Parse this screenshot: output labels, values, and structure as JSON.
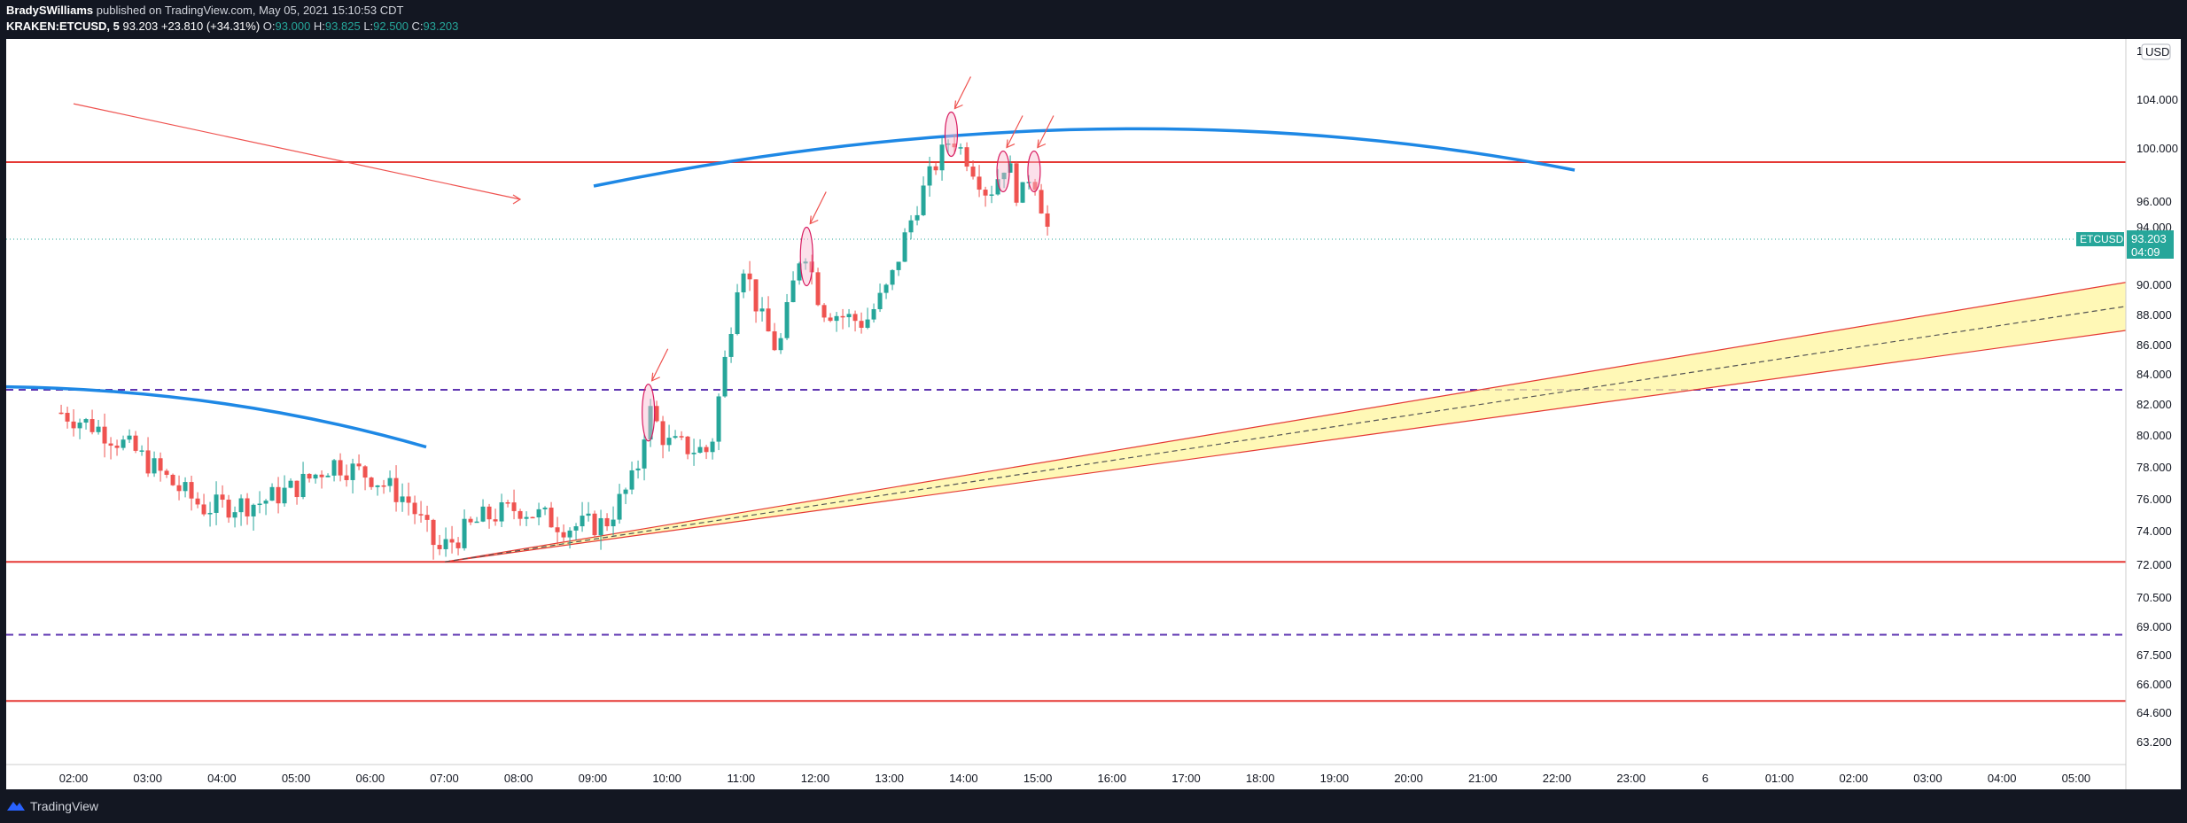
{
  "header": {
    "author": "BradySWilliams",
    "published": "published on TradingView.com, May 05, 2021 15:10:53 CDT",
    "symbol": "KRAKEN:ETCUSD, 5",
    "last": "93.203",
    "change": "+23.810 (+34.31%)",
    "o_label": "O:",
    "o": "93.000",
    "h_label": "H:",
    "h": "93.825",
    "l_label": "L:",
    "l": "92.500",
    "c_label": "C:",
    "c": "93.203"
  },
  "footer": {
    "brand": "TradingView"
  },
  "colors": {
    "background": "#ffffff",
    "up": "#26a69a",
    "down": "#ef5350",
    "hline": "#e53935",
    "dashed": "#5e35b1",
    "arc": "#1e88e5",
    "channel_fill": "#fff59d"
  },
  "chart_data": {
    "type": "candlestick",
    "title": "",
    "xlabel": "",
    "ylabel": "",
    "currency_badge": "USD",
    "price_tag": {
      "symbol": "ETCUSD",
      "value": "93.203",
      "timer": "04:09"
    },
    "x_ticks": [
      "02:00",
      "03:00",
      "04:00",
      "05:00",
      "06:00",
      "07:00",
      "08:00",
      "09:00",
      "10:00",
      "11:00",
      "12:00",
      "13:00",
      "14:00",
      "15:00",
      "16:00",
      "17:00",
      "18:00",
      "19:00",
      "20:00",
      "21:00",
      "22:00",
      "23:00",
      "6",
      "01:00",
      "02:00",
      "03:00",
      "04:00",
      "05:00"
    ],
    "y_ticks": [
      "104.000",
      "100.000",
      "96.000",
      "94.000",
      "90.000",
      "88.000",
      "86.000",
      "84.000",
      "82.000",
      "80.000",
      "78.000",
      "76.000",
      "74.000",
      "72.000",
      "70.500",
      "69.000",
      "67.500",
      "66.000",
      "64.600",
      "63.200"
    ],
    "y_top_label": "1(",
    "horizontal_levels": [
      99.0,
      72.2,
      65.2
    ],
    "dashed_levels": [
      83.0,
      68.6
    ],
    "anchor_points": [
      {
        "t": "01:50",
        "price": 81.5
      },
      {
        "t": "02:20",
        "price": 80.5
      },
      {
        "t": "02:50",
        "price": 79.0
      },
      {
        "t": "03:20",
        "price": 77.0
      },
      {
        "t": "03:45",
        "price": 75.5
      },
      {
        "t": "04:30",
        "price": 75.8
      },
      {
        "t": "05:00",
        "price": 76.8
      },
      {
        "t": "05:30",
        "price": 78.3
      },
      {
        "t": "06:00",
        "price": 77.5
      },
      {
        "t": "06:30",
        "price": 76.0
      },
      {
        "t": "06:55",
        "price": 72.8
      },
      {
        "t": "07:30",
        "price": 74.8
      },
      {
        "t": "08:00",
        "price": 75.5
      },
      {
        "t": "08:40",
        "price": 74.3
      },
      {
        "t": "09:10",
        "price": 74.5
      },
      {
        "t": "09:35",
        "price": 77.5
      },
      {
        "t": "09:45",
        "price": 81.8
      },
      {
        "t": "10:00",
        "price": 79.5
      },
      {
        "t": "10:35",
        "price": 79.0
      },
      {
        "t": "10:50",
        "price": 86.5
      },
      {
        "t": "11:00",
        "price": 92.0
      },
      {
        "t": "11:15",
        "price": 88.0
      },
      {
        "t": "11:30",
        "price": 85.5
      },
      {
        "t": "11:50",
        "price": 93.0
      },
      {
        "t": "12:05",
        "price": 88.5
      },
      {
        "t": "12:20",
        "price": 88.0
      },
      {
        "t": "12:40",
        "price": 87.5
      },
      {
        "t": "13:00",
        "price": 90.0
      },
      {
        "t": "13:15",
        "price": 94.0
      },
      {
        "t": "13:30",
        "price": 97.5
      },
      {
        "t": "13:50",
        "price": 101.0
      },
      {
        "t": "14:05",
        "price": 99.0
      },
      {
        "t": "14:20",
        "price": 96.5
      },
      {
        "t": "14:35",
        "price": 99.2
      },
      {
        "t": "14:45",
        "price": 96.0
      },
      {
        "t": "14:55",
        "price": 98.5
      },
      {
        "t": "15:05",
        "price": 95.0
      },
      {
        "t": "15:10",
        "price": 93.2
      }
    ]
  }
}
